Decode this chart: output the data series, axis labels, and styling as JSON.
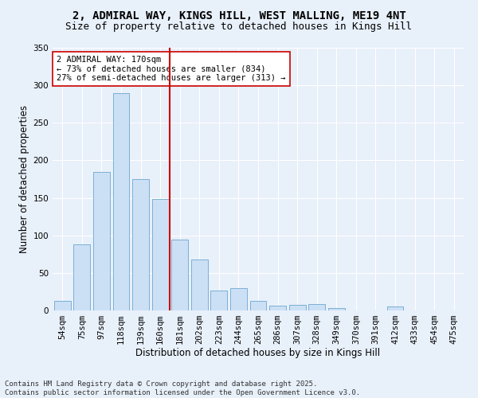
{
  "title_line1": "2, ADMIRAL WAY, KINGS HILL, WEST MALLING, ME19 4NT",
  "title_line2": "Size of property relative to detached houses in Kings Hill",
  "xlabel": "Distribution of detached houses by size in Kings Hill",
  "ylabel": "Number of detached properties",
  "bar_color": "#cce0f5",
  "bar_edge_color": "#7bafd4",
  "background_color": "#e8f0fa",
  "fig_background_color": "#e8f0fa",
  "grid_color": "#ffffff",
  "categories": [
    "54sqm",
    "75sqm",
    "97sqm",
    "118sqm",
    "139sqm",
    "160sqm",
    "181sqm",
    "202sqm",
    "223sqm",
    "244sqm",
    "265sqm",
    "286sqm",
    "307sqm",
    "328sqm",
    "349sqm",
    "370sqm",
    "391sqm",
    "412sqm",
    "433sqm",
    "454sqm",
    "475sqm"
  ],
  "values": [
    13,
    88,
    185,
    290,
    175,
    148,
    94,
    68,
    26,
    30,
    13,
    6,
    7,
    8,
    3,
    0,
    0,
    5,
    0,
    0,
    0
  ],
  "ylim": [
    0,
    350
  ],
  "yticks": [
    0,
    50,
    100,
    150,
    200,
    250,
    300,
    350
  ],
  "vline_x": 5.5,
  "vline_color": "#cc0000",
  "annotation_text": "2 ADMIRAL WAY: 170sqm\n← 73% of detached houses are smaller (834)\n27% of semi-detached houses are larger (313) →",
  "annotation_box_color": "#ffffff",
  "annotation_box_edgecolor": "#cc0000",
  "footer_text": "Contains HM Land Registry data © Crown copyright and database right 2025.\nContains public sector information licensed under the Open Government Licence v3.0.",
  "title_fontsize": 10,
  "subtitle_fontsize": 9,
  "axis_label_fontsize": 8.5,
  "tick_fontsize": 7.5,
  "annotation_fontsize": 7.5,
  "footer_fontsize": 6.5
}
